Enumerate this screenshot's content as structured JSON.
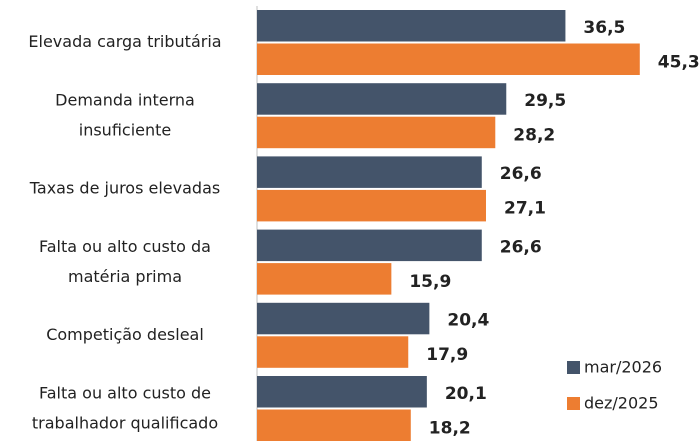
{
  "chart_data": {
    "type": "hbar",
    "categories": [
      "Elevada carga tributária",
      "Demanda interna\ninsuficiente",
      "Taxas de juros elevadas",
      "Falta ou alto custo da\nmatéria prima",
      "Competição desleal",
      "Falta ou alto custo de\ntrabalhador qualificado"
    ],
    "series": [
      {
        "name": "mar/2026",
        "color": "#44546a",
        "values": [
          36.5,
          29.5,
          26.6,
          26.6,
          20.4,
          20.1
        ],
        "value_labels": [
          "36,5",
          "29,5",
          "26,6",
          "26,6",
          "20,4",
          "20,1"
        ]
      },
      {
        "name": "dez/2025",
        "color": "#ed7d31",
        "values": [
          45.3,
          28.2,
          27.1,
          15.9,
          17.9,
          18.2
        ],
        "value_labels": [
          "45,3",
          "28,2",
          "27,1",
          "15,9",
          "17,9",
          "18,2"
        ]
      }
    ],
    "legend": "lower right"
  }
}
